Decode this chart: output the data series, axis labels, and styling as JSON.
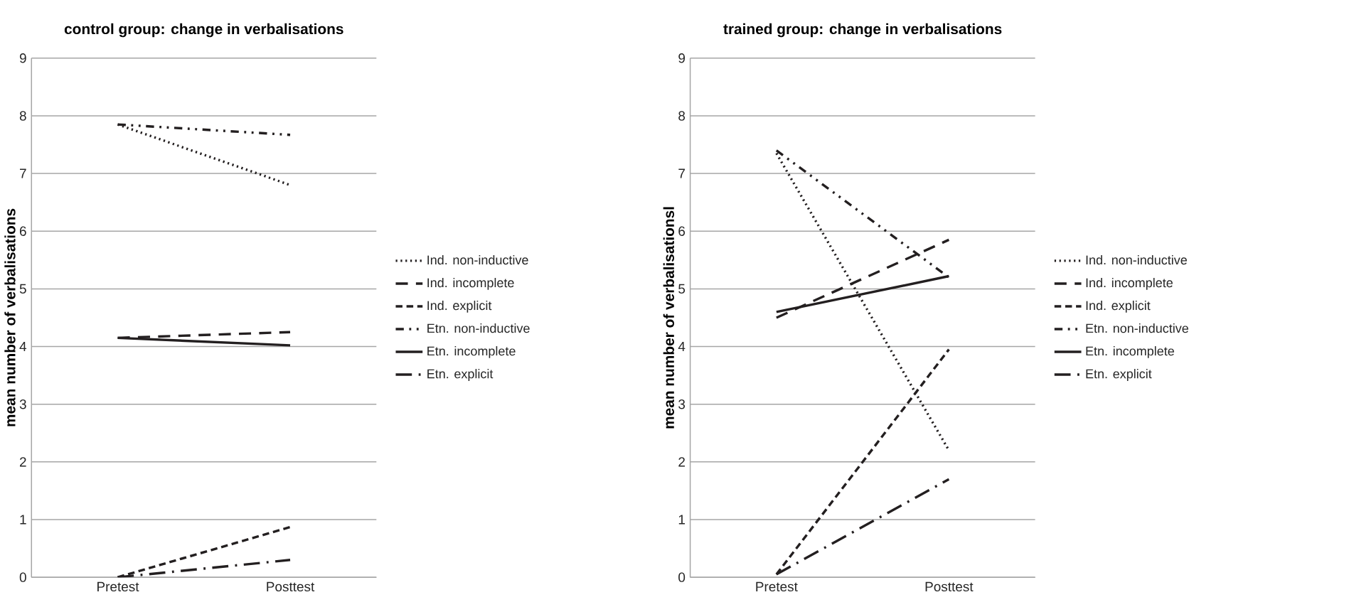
{
  "chart_data": [
    {
      "type": "line",
      "title": "control group: change in verbalisations",
      "ylabel": "mean number of verbalisations",
      "categories": [
        "Pretest",
        "Posttest"
      ],
      "ylim": [
        0,
        9
      ],
      "yticks": [
        0,
        1,
        2,
        3,
        4,
        5,
        6,
        7,
        8,
        9
      ],
      "grid": "y",
      "legend": "right",
      "series": [
        {
          "name": "Ind. non-inductive",
          "color": "#231f20",
          "line_style": "dotted",
          "values": [
            7.85,
            6.8
          ]
        },
        {
          "name": "Ind. incomplete",
          "color": "#231f20",
          "line_style": "long dashed",
          "values": [
            4.15,
            4.25
          ]
        },
        {
          "name": "Ind. explicit",
          "color": "#231f20",
          "line_style": "dashed",
          "values": [
            0,
            0.87
          ]
        },
        {
          "name": "Etn. non-inductive",
          "color": "#231f20",
          "line_style": "dash dot dot",
          "values": [
            7.85,
            7.67
          ]
        },
        {
          "name": "Etn. incomplete",
          "color": "#231f20",
          "line_style": "solid",
          "values": [
            4.15,
            4.02
          ]
        },
        {
          "name": "Etn. explicit",
          "color": "#231f20",
          "line_style": "long dash dot",
          "values": [
            0,
            0.3
          ]
        }
      ]
    },
    {
      "type": "line",
      "title": "trained group: change in verbalisations",
      "ylabel": "mean number of verbalisationsl",
      "categories": [
        "Pretest",
        "Posttest"
      ],
      "ylim": [
        0,
        9
      ],
      "yticks": [
        0,
        1,
        2,
        3,
        4,
        5,
        6,
        7,
        8,
        9
      ],
      "grid": "y",
      "legend": "right",
      "series": [
        {
          "name": "Ind. non-inductive",
          "color": "#231f20",
          "line_style": "dotted",
          "values": [
            7.35,
            2.2
          ]
        },
        {
          "name": "Ind. incomplete",
          "color": "#231f20",
          "line_style": "long dashed",
          "values": [
            4.5,
            5.85
          ]
        },
        {
          "name": "Ind. explicit",
          "color": "#231f20",
          "line_style": "dashed",
          "values": [
            0.05,
            3.95
          ]
        },
        {
          "name": "Etn. non-inductive",
          "color": "#231f20",
          "line_style": "dash dot dot",
          "values": [
            7.4,
            5.2
          ]
        },
        {
          "name": "Etn. incomplete",
          "color": "#231f20",
          "line_style": "solid",
          "values": [
            4.6,
            5.22
          ]
        },
        {
          "name": "Etn. explicit",
          "color": "#231f20",
          "line_style": "long dash dot",
          "values": [
            0.05,
            1.7
          ]
        }
      ]
    }
  ]
}
